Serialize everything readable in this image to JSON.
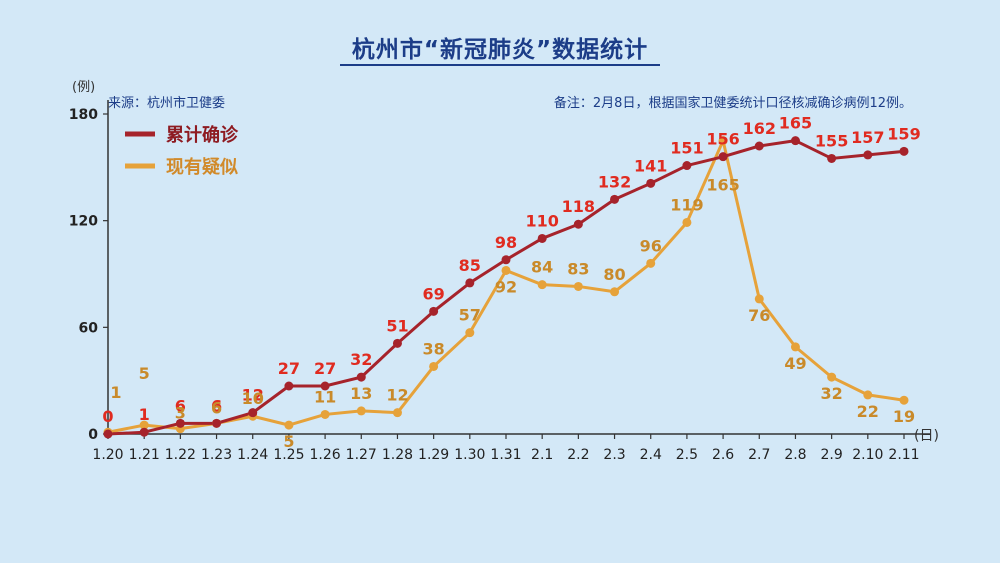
{
  "title": "杭州市“新冠肺炎”数据统计",
  "source": "来源：杭州市卫健委",
  "note": "备注：2月8日，根据国家卫健委统计口径核减确诊病例12例。",
  "colors": {
    "confirmed": "#a6232b",
    "suspected": "#e6a23a",
    "confirmed_label": "#e02b20",
    "suspected_label": "#c98a2a"
  },
  "chart_data": {
    "type": "line",
    "title": "杭州市“新冠肺炎”数据统计",
    "categories": [
      "1.20",
      "1.21",
      "1.22",
      "1.23",
      "1.24",
      "1.25",
      "1.26",
      "1.27",
      "1.28",
      "1.29",
      "1.30",
      "1.31",
      "2.1",
      "2.2",
      "2.3",
      "2.4",
      "2.5",
      "2.6",
      "2.7",
      "2.8",
      "2.9",
      "2.10",
      "2.11"
    ],
    "series": [
      {
        "name": "累计确诊",
        "values": [
          0,
          1,
          6,
          6,
          12,
          27,
          27,
          32,
          51,
          69,
          85,
          98,
          110,
          118,
          132,
          141,
          151,
          156,
          162,
          165,
          155,
          157,
          159
        ]
      },
      {
        "name": "现有疑似",
        "values": [
          1,
          5,
          3,
          6,
          10,
          5,
          11,
          13,
          12,
          38,
          57,
          92,
          84,
          83,
          80,
          96,
          119,
          165,
          76,
          49,
          32,
          22,
          19
        ]
      }
    ],
    "ylabel": "(例)",
    "xlabel": "(日)",
    "yticks": [
      "0",
      "60",
      "120",
      "180"
    ],
    "ylim": [
      0,
      180
    ],
    "grid": false,
    "legend": "top-left"
  }
}
